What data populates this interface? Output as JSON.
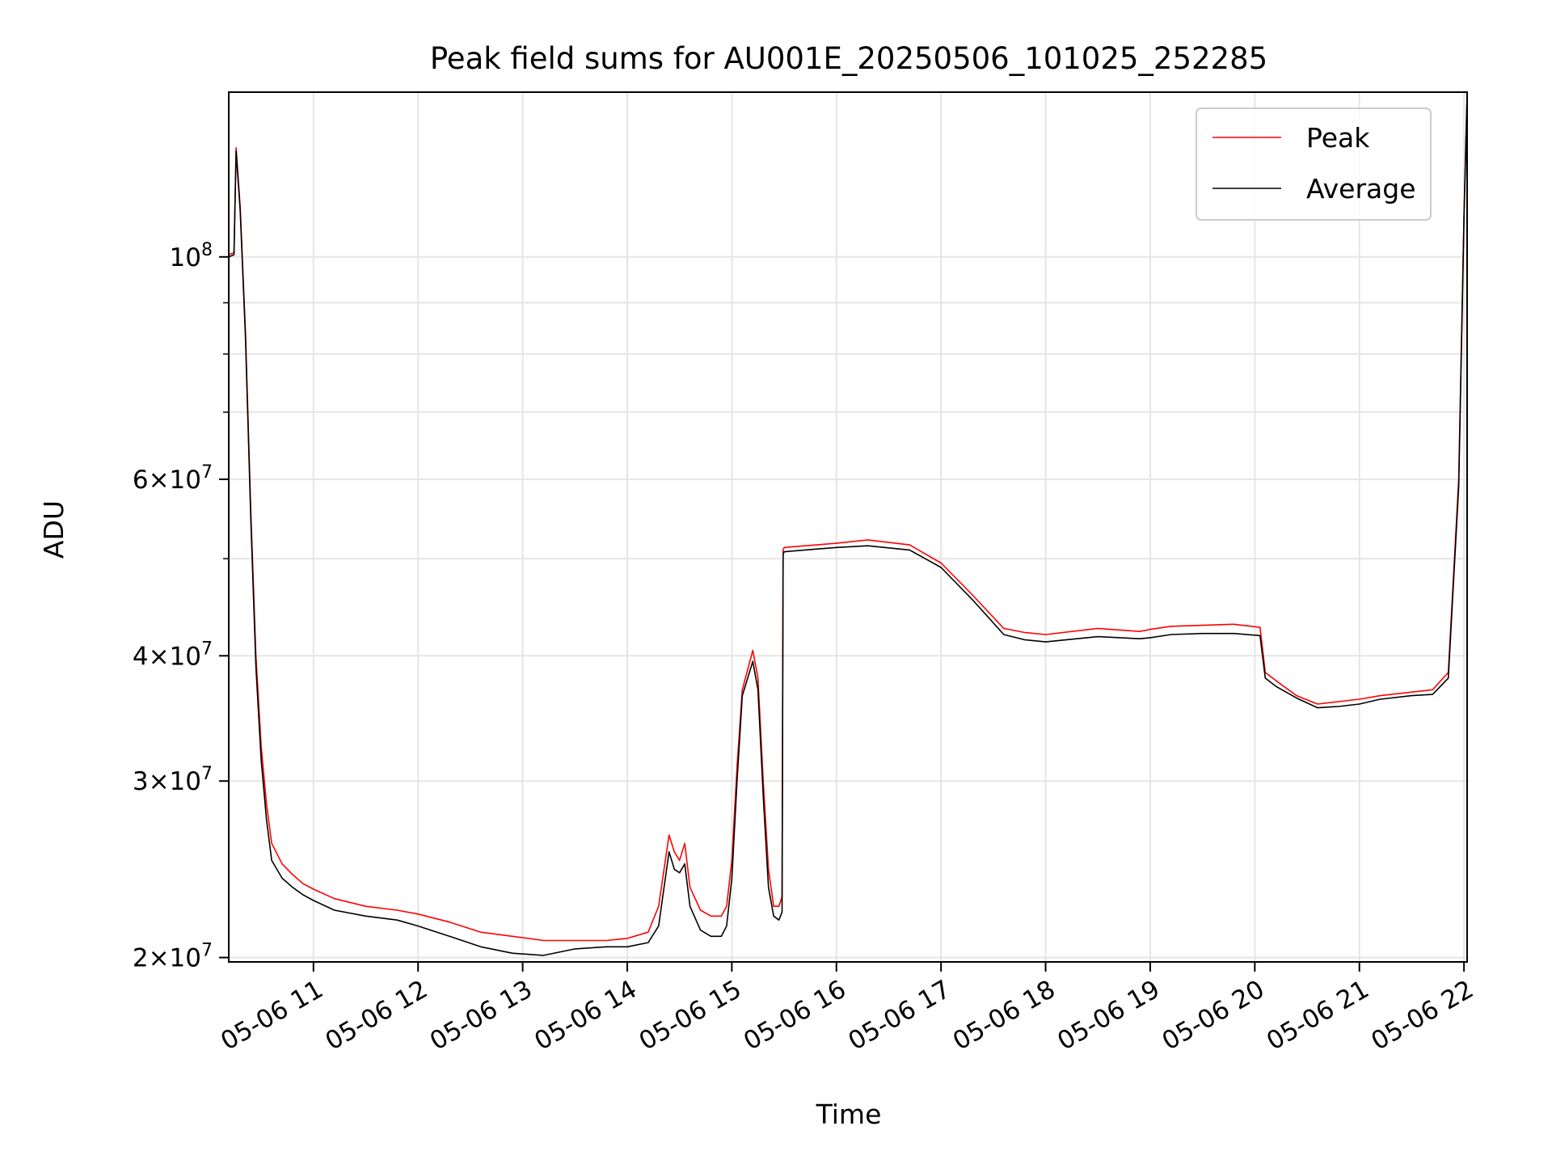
{
  "chart_data": {
    "type": "line",
    "title": "Peak field sums for AU001E_20250506_101025_252285",
    "xlabel": "Time",
    "ylabel": "ADU",
    "yscale": "log",
    "grid": true,
    "legend_position": "top-right",
    "x_units": "hours of day, 2025-05-06",
    "xlim": [
      10.19,
      22.03
    ],
    "ylim": [
      19800000,
      146000000
    ],
    "x_ticks": [
      {
        "value": 11,
        "label": "05-06 11"
      },
      {
        "value": 12,
        "label": "05-06 12"
      },
      {
        "value": 13,
        "label": "05-06 13"
      },
      {
        "value": 14,
        "label": "05-06 14"
      },
      {
        "value": 15,
        "label": "05-06 15"
      },
      {
        "value": 16,
        "label": "05-06 16"
      },
      {
        "value": 17,
        "label": "05-06 17"
      },
      {
        "value": 18,
        "label": "05-06 18"
      },
      {
        "value": 19,
        "label": "05-06 19"
      },
      {
        "value": 20,
        "label": "05-06 20"
      },
      {
        "value": 21,
        "label": "05-06 21"
      },
      {
        "value": 22,
        "label": "05-06 22"
      }
    ],
    "y_major_ticks": [
      {
        "value": 20000000,
        "mant": "2",
        "exp": "7"
      },
      {
        "value": 30000000,
        "mant": "3",
        "exp": "7"
      },
      {
        "value": 40000000,
        "mant": "4",
        "exp": "7"
      },
      {
        "value": 60000000,
        "mant": "6",
        "exp": "7"
      },
      {
        "value": 100000000,
        "mant": "",
        "exp": "8"
      }
    ],
    "y_minor_ticks": [
      50000000,
      70000000,
      80000000,
      90000000
    ],
    "series": [
      {
        "name": "Peak",
        "color": "#ff0000",
        "x": [
          10.19,
          10.24,
          10.26,
          10.3,
          10.35,
          10.4,
          10.45,
          10.5,
          10.55,
          10.6,
          10.7,
          10.8,
          10.9,
          11.0,
          11.2,
          11.5,
          11.8,
          12.0,
          12.3,
          12.6,
          12.9,
          13.2,
          13.5,
          13.8,
          14.0,
          14.2,
          14.3,
          14.4,
          14.45,
          14.5,
          14.55,
          14.6,
          14.7,
          14.8,
          14.9,
          14.95,
          15.0,
          15.05,
          15.1,
          15.2,
          15.25,
          15.3,
          15.35,
          15.4,
          15.45,
          15.48,
          15.49,
          15.5,
          15.7,
          16.0,
          16.3,
          16.7,
          17.0,
          17.3,
          17.6,
          17.8,
          18.0,
          18.5,
          18.9,
          19.0,
          19.2,
          19.5,
          19.8,
          20.05,
          20.1,
          20.2,
          20.4,
          20.6,
          20.8,
          21.0,
          21.2,
          21.5,
          21.7,
          21.85,
          21.95,
          22.0,
          22.03
        ],
        "values": [
          100500000,
          101000000,
          128500000,
          112000000,
          84000000,
          56000000,
          40000000,
          32500000,
          28500000,
          26000000,
          24800000,
          24200000,
          23700000,
          23400000,
          22900000,
          22500000,
          22300000,
          22100000,
          21700000,
          21200000,
          21000000,
          20800000,
          20800000,
          20800000,
          20900000,
          21200000,
          22500000,
          26500000,
          25500000,
          25000000,
          26000000,
          23500000,
          22300000,
          22000000,
          22000000,
          22500000,
          25000000,
          31000000,
          37000000,
          40500000,
          38000000,
          30000000,
          24500000,
          22500000,
          22500000,
          23000000,
          51000000,
          51300000,
          51500000,
          51800000,
          52200000,
          51600000,
          49500000,
          46000000,
          42600000,
          42200000,
          42000000,
          42600000,
          42300000,
          42500000,
          42800000,
          42900000,
          43000000,
          42700000,
          38500000,
          37800000,
          36500000,
          35800000,
          36000000,
          36200000,
          36500000,
          36800000,
          37000000,
          38500000,
          60000000,
          110000000,
          146000000
        ]
      },
      {
        "name": "Average",
        "color": "#000000",
        "x": [
          10.19,
          10.24,
          10.26,
          10.3,
          10.35,
          10.4,
          10.45,
          10.5,
          10.55,
          10.6,
          10.7,
          10.8,
          10.9,
          11.0,
          11.2,
          11.5,
          11.8,
          12.0,
          12.3,
          12.6,
          12.9,
          13.2,
          13.5,
          13.8,
          14.0,
          14.2,
          14.3,
          14.4,
          14.45,
          14.5,
          14.55,
          14.6,
          14.7,
          14.8,
          14.9,
          14.95,
          15.0,
          15.05,
          15.1,
          15.2,
          15.25,
          15.3,
          15.35,
          15.4,
          15.45,
          15.48,
          15.49,
          15.5,
          15.7,
          16.0,
          16.3,
          16.7,
          17.0,
          17.3,
          17.6,
          17.8,
          18.0,
          18.5,
          18.9,
          19.0,
          19.2,
          19.5,
          19.8,
          20.05,
          20.1,
          20.2,
          20.4,
          20.6,
          20.8,
          21.0,
          21.2,
          21.5,
          21.7,
          21.85,
          21.95,
          22.0,
          22.03
        ],
        "values": [
          100000000,
          100500000,
          127500000,
          111000000,
          83000000,
          55000000,
          39000000,
          31500000,
          27500000,
          25000000,
          24000000,
          23500000,
          23100000,
          22800000,
          22300000,
          22000000,
          21800000,
          21500000,
          21000000,
          20500000,
          20200000,
          20100000,
          20400000,
          20500000,
          20500000,
          20700000,
          21500000,
          25500000,
          24500000,
          24300000,
          24800000,
          22500000,
          21300000,
          21000000,
          21000000,
          21500000,
          24000000,
          30000000,
          36500000,
          39500000,
          37000000,
          29000000,
          23500000,
          22000000,
          21800000,
          22200000,
          50500000,
          50800000,
          51000000,
          51300000,
          51500000,
          51000000,
          49000000,
          45500000,
          42000000,
          41500000,
          41300000,
          41800000,
          41600000,
          41700000,
          42000000,
          42100000,
          42100000,
          41900000,
          38000000,
          37300000,
          36300000,
          35500000,
          35600000,
          35800000,
          36200000,
          36500000,
          36600000,
          38000000,
          59000000,
          109000000,
          145000000
        ]
      }
    ]
  }
}
